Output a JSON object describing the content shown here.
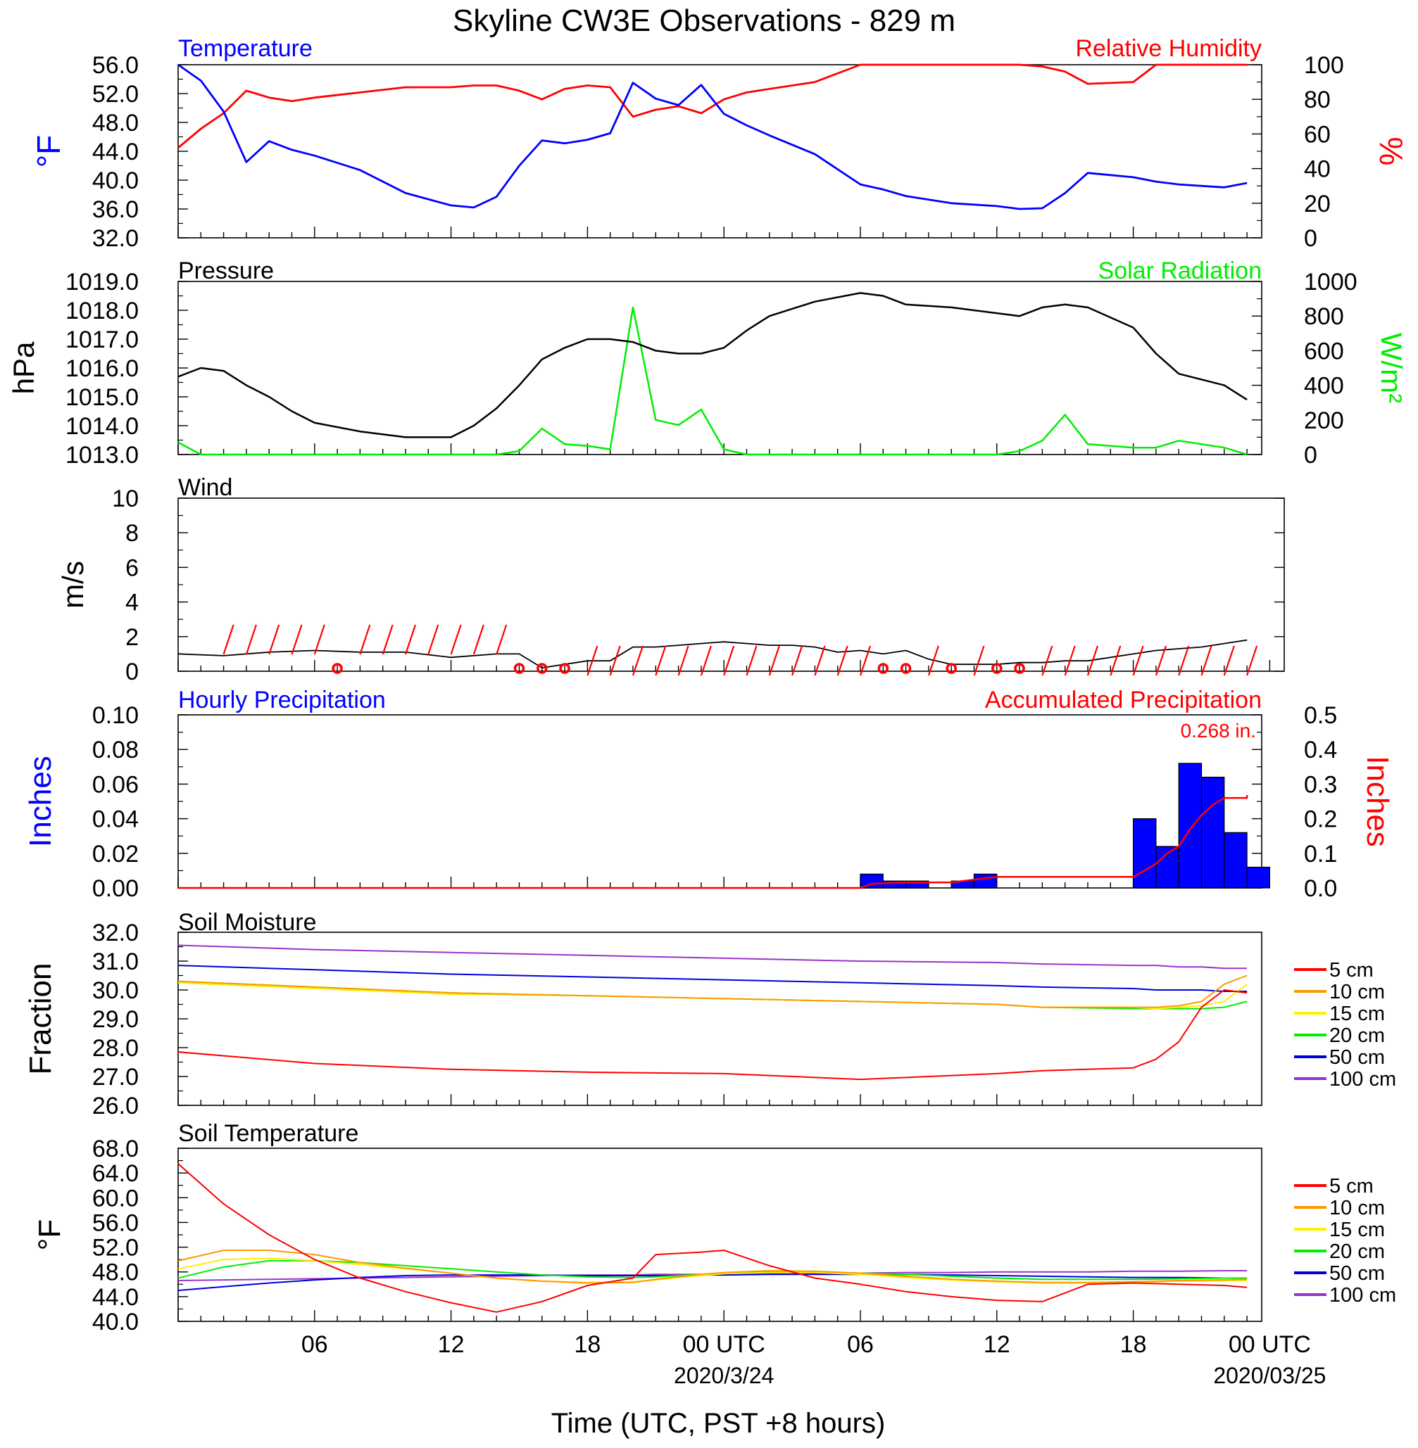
{
  "title": "Skyline CW3E Observations - 829 m",
  "x_axis": {
    "label": "Time (UTC, PST +8 hours)",
    "ticks": [
      "06",
      "12",
      "18",
      "00 UTC",
      "06",
      "12",
      "18",
      "00 UTC"
    ],
    "dates": [
      "2020/3/24",
      "2020/03/25"
    ]
  },
  "units": {
    "degF": "°F",
    "percent": "%",
    "hpa": "hPa",
    "wm2": "W/m²",
    "ms": "m/s",
    "inches": "Inches",
    "fraction": "Fraction"
  },
  "colors": {
    "temperature": "#0000ff",
    "humidity": "#ff0000",
    "pressure": "#000000",
    "solar": "#00ee00",
    "soil": [
      "#ff0000",
      "#ff9900",
      "#ffee00",
      "#00ee00",
      "#0000dd",
      "#9933cc"
    ]
  },
  "chart_data": [
    {
      "type": "line",
      "panel": "temperature-humidity",
      "left_label": "Temperature",
      "right_label": "Relative Humidity",
      "ylim_left": [
        32,
        56
      ],
      "ylim_right": [
        0,
        100
      ],
      "x_hours": [
        0,
        1,
        2,
        3,
        4,
        5,
        6,
        8,
        10,
        12,
        13,
        14,
        15,
        16,
        17,
        18,
        19,
        20,
        21,
        22,
        23,
        24,
        25,
        26,
        28,
        30,
        31,
        32,
        34,
        36,
        37,
        38,
        39,
        40,
        42,
        43,
        44,
        46,
        47
      ],
      "series": [
        {
          "name": "Temperature",
          "axis": "left",
          "values": [
            56,
            53.8,
            49.5,
            42.5,
            45.4,
            44.2,
            43.4,
            41.4,
            38.2,
            36.5,
            36.2,
            37.7,
            42,
            45.5,
            45.1,
            45.6,
            46.5,
            53.5,
            51.3,
            50.4,
            53.2,
            49.2,
            47.6,
            46.2,
            43.6,
            39.4,
            38.7,
            37.8,
            36.8,
            36.4,
            36,
            36.1,
            38.2,
            41,
            40.4,
            39.8,
            39.4,
            39,
            39.6
          ]
        },
        {
          "name": "Relative Humidity",
          "axis": "right",
          "values": [
            52,
            63,
            72,
            85,
            81,
            79,
            81,
            84,
            87,
            87,
            88,
            88,
            85,
            80,
            86,
            88,
            87,
            70,
            74,
            76,
            72,
            80,
            84,
            86,
            90,
            100,
            100,
            100,
            100,
            100,
            100,
            99,
            96,
            89,
            90,
            100,
            100,
            100,
            100
          ]
        }
      ]
    },
    {
      "type": "line",
      "panel": "pressure-solar",
      "left_label": "Pressure",
      "right_label": "Solar Radiation",
      "ylim_left": [
        1013,
        1019
      ],
      "ylim_right": [
        0,
        1000
      ],
      "x_hours": [
        0,
        1,
        2,
        3,
        4,
        5,
        6,
        8,
        10,
        12,
        13,
        14,
        15,
        16,
        17,
        18,
        19,
        20,
        21,
        22,
        23,
        24,
        25,
        26,
        28,
        30,
        31,
        32,
        34,
        36,
        37,
        38,
        39,
        40,
        42,
        43,
        44,
        46,
        47
      ],
      "series": [
        {
          "name": "Pressure",
          "axis": "left",
          "values": [
            1015.7,
            1016,
            1015.9,
            1015.4,
            1015,
            1014.5,
            1014.1,
            1013.8,
            1013.6,
            1013.6,
            1014,
            1014.6,
            1015.4,
            1016.3,
            1016.7,
            1017,
            1017,
            1016.9,
            1016.6,
            1016.5,
            1016.5,
            1016.7,
            1017.3,
            1017.8,
            1018.3,
            1018.6,
            1018.5,
            1018.2,
            1018.1,
            1017.9,
            1017.8,
            1018.1,
            1018.2,
            1018.1,
            1017.4,
            1016.5,
            1015.8,
            1015.4,
            1014.9
          ]
        },
        {
          "name": "Solar Radiation",
          "axis": "right",
          "values": [
            70,
            0,
            0,
            0,
            0,
            0,
            0,
            0,
            0,
            0,
            0,
            0,
            20,
            150,
            60,
            50,
            30,
            850,
            200,
            170,
            260,
            30,
            0,
            0,
            0,
            0,
            0,
            0,
            0,
            0,
            20,
            80,
            230,
            60,
            40,
            40,
            80,
            40,
            0
          ]
        }
      ]
    },
    {
      "type": "line",
      "panel": "wind",
      "left_label": "Wind",
      "ylim": [
        0,
        10
      ],
      "yticks": [
        0,
        2,
        4,
        6,
        8,
        10
      ],
      "x_hours": [
        0,
        2,
        4,
        6,
        8,
        10,
        12,
        14,
        15,
        16,
        17,
        18,
        19,
        20,
        21,
        22,
        23,
        24,
        25,
        26,
        27,
        28,
        29,
        30,
        31,
        32,
        33,
        34,
        35,
        36,
        37,
        38,
        39,
        40,
        41,
        42,
        43,
        44,
        45,
        46,
        47
      ],
      "series": [
        {
          "name": "Wind speed",
          "values": [
            1,
            0.9,
            1.1,
            1.2,
            1.1,
            1.1,
            0.8,
            1,
            1,
            0.2,
            0.4,
            0.6,
            0.6,
            1.4,
            1.4,
            1.5,
            1.6,
            1.7,
            1.6,
            1.5,
            1.5,
            1.4,
            1.1,
            1.2,
            1,
            1.2,
            0.7,
            0.4,
            0.4,
            0.4,
            0.5,
            0.5,
            0.6,
            0.6,
            0.8,
            1,
            1.2,
            1.3,
            1.4,
            1.6,
            1.8
          ]
        }
      ],
      "barb_hours": [
        2,
        3,
        4,
        5,
        6,
        8,
        9,
        10,
        11,
        12,
        13,
        14,
        15,
        16,
        17,
        18,
        19,
        20,
        21,
        22,
        23,
        24,
        25,
        26,
        27,
        28,
        29,
        30,
        31,
        32,
        33,
        34,
        35,
        36,
        37,
        38,
        39,
        40,
        41,
        42,
        43,
        44,
        45,
        46,
        47
      ],
      "calm_hours": [
        7,
        15,
        16,
        17,
        31,
        32,
        34,
        36,
        37
      ]
    },
    {
      "type": "bar",
      "panel": "precipitation",
      "left_label": "Hourly Precipitation",
      "right_label": "Accumulated Precipitation",
      "total_label": "0.268 in.",
      "ylim_left": [
        0,
        0.1
      ],
      "ylim_right": [
        0,
        0.5
      ],
      "hourly": [
        {
          "hour": 30,
          "value": 0.008
        },
        {
          "hour": 31,
          "value": 0.004
        },
        {
          "hour": 32,
          "value": 0.004
        },
        {
          "hour": 34,
          "value": 0.004
        },
        {
          "hour": 35,
          "value": 0.008
        },
        {
          "hour": 42,
          "value": 0.04
        },
        {
          "hour": 43,
          "value": 0.024
        },
        {
          "hour": 44,
          "value": 0.072
        },
        {
          "hour": 45,
          "value": 0.064
        },
        {
          "hour": 46,
          "value": 0.032
        },
        {
          "hour": 47,
          "value": 0.012
        }
      ],
      "accumulated": {
        "x_hours": [
          0,
          30,
          30.5,
          32,
          34,
          35,
          36,
          42,
          42.5,
          43,
          43.5,
          44,
          44.5,
          45,
          45.5,
          46,
          47,
          47
        ],
        "values": [
          0,
          0,
          0.012,
          0.016,
          0.016,
          0.024,
          0.032,
          0.032,
          0.05,
          0.07,
          0.1,
          0.12,
          0.17,
          0.21,
          0.24,
          0.26,
          0.26,
          0.268
        ]
      }
    },
    {
      "type": "line",
      "panel": "soil-moisture",
      "left_label": "Soil Moisture",
      "ylim": [
        26,
        32
      ],
      "x_hours": [
        0,
        6,
        12,
        18,
        24,
        30,
        36,
        38,
        42,
        43,
        44,
        45,
        46,
        47
      ],
      "series": [
        {
          "name": "5 cm",
          "values": [
            27.85,
            27.45,
            27.25,
            27.15,
            27.1,
            26.9,
            27.1,
            27.2,
            27.3,
            27.6,
            28.2,
            29.4,
            30.0,
            29.9
          ]
        },
        {
          "name": "10 cm",
          "values": [
            30.3,
            30.1,
            29.9,
            29.8,
            29.7,
            29.6,
            29.5,
            29.4,
            29.4,
            29.4,
            29.45,
            29.6,
            30.2,
            30.5
          ]
        },
        {
          "name": "15 cm",
          "values": [
            30.25,
            30.05,
            29.85,
            29.8,
            29.7,
            29.6,
            29.5,
            29.4,
            29.4,
            29.35,
            29.4,
            29.45,
            29.6,
            30.2
          ]
        },
        {
          "name": "20 cm",
          "values": [
            30.3,
            30.1,
            29.9,
            29.8,
            29.7,
            29.6,
            29.5,
            29.4,
            29.35,
            29.35,
            29.35,
            29.35,
            29.4,
            29.6
          ]
        },
        {
          "name": "50 cm",
          "values": [
            30.85,
            30.7,
            30.55,
            30.45,
            30.35,
            30.25,
            30.15,
            30.1,
            30.05,
            30.0,
            30.0,
            30.0,
            29.95,
            29.95
          ]
        },
        {
          "name": "100 cm",
          "values": [
            31.55,
            31.4,
            31.3,
            31.2,
            31.1,
            31.0,
            30.95,
            30.9,
            30.85,
            30.85,
            30.8,
            30.8,
            30.75,
            30.75
          ]
        }
      ]
    },
    {
      "type": "line",
      "panel": "soil-temperature",
      "left_label": "Soil Temperature",
      "ylim": [
        40,
        68
      ],
      "x_hours": [
        0,
        2,
        4,
        6,
        8,
        10,
        12,
        14,
        16,
        18,
        20,
        21,
        22,
        23,
        24,
        26,
        28,
        30,
        32,
        34,
        36,
        38,
        40,
        42,
        44,
        46,
        47
      ],
      "series": [
        {
          "name": "5 cm",
          "values": [
            65.5,
            59,
            54,
            50,
            47,
            44.8,
            43,
            41.5,
            43.2,
            45.8,
            47,
            50.8,
            51,
            51.2,
            51.5,
            49,
            47,
            46,
            44.8,
            44,
            43.4,
            43.2,
            46,
            46.2,
            46,
            45.8,
            45.5
          ]
        },
        {
          "name": "10 cm",
          "values": [
            49.8,
            51.5,
            51.5,
            50.8,
            49.5,
            48.6,
            47.8,
            47,
            46.5,
            46.2,
            46.3,
            46.8,
            47.2,
            47.6,
            47.9,
            48.2,
            48.1,
            47.8,
            47.3,
            46.8,
            46.5,
            46.3,
            46.3,
            46.4,
            46.6,
            46.7,
            46.8
          ]
        },
        {
          "name": "15 cm",
          "values": [
            48.5,
            50,
            50.2,
            49.8,
            49.2,
            48.5,
            47.8,
            47,
            46.5,
            46.3,
            46.4,
            46.7,
            47.1,
            47.4,
            47.7,
            47.9,
            47.9,
            47.6,
            47.1,
            46.7,
            46.4,
            46.2,
            46.2,
            46.3,
            46.5,
            46.6,
            46.6
          ]
        },
        {
          "name": "20 cm",
          "values": [
            47,
            48.8,
            49.8,
            49.8,
            49.5,
            49,
            48.5,
            48,
            47.5,
            47.2,
            47.1,
            47.2,
            47.4,
            47.6,
            47.8,
            48,
            48,
            47.8,
            47.6,
            47.3,
            47,
            46.8,
            46.8,
            46.8,
            46.9,
            47,
            47
          ]
        },
        {
          "name": "50 cm",
          "values": [
            45,
            45.6,
            46.2,
            46.7,
            47.1,
            47.4,
            47.5,
            47.5,
            47.5,
            47.4,
            47.4,
            47.4,
            47.4,
            47.5,
            47.5,
            47.6,
            47.6,
            47.6,
            47.6,
            47.5,
            47.4,
            47.3,
            47.2,
            47.1,
            47.1,
            47,
            47
          ]
        },
        {
          "name": "100 cm",
          "values": [
            46.6,
            46.7,
            46.8,
            46.9,
            47,
            47.1,
            47.2,
            47.3,
            47.4,
            47.5,
            47.5,
            47.6,
            47.6,
            47.6,
            47.7,
            47.7,
            47.8,
            47.8,
            47.9,
            47.9,
            48,
            48,
            48,
            48.1,
            48.1,
            48.2,
            48.2
          ]
        }
      ]
    }
  ]
}
